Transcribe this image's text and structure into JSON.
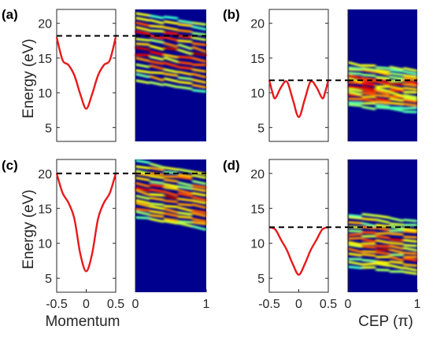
{
  "chart_data": [
    {
      "panel": "(a)",
      "type": "line",
      "x": [
        -0.5,
        -0.4,
        -0.3,
        -0.2,
        -0.1,
        0,
        0.1,
        0.2,
        0.3,
        0.4,
        0.5
      ],
      "y": [
        18,
        14.7,
        14,
        12.5,
        9.8,
        7.7,
        9.8,
        12.5,
        14,
        14.7,
        18
      ],
      "xlim": [
        -0.5,
        0.5
      ],
      "ylim": [
        3,
        22
      ],
      "yticks": [
        "5",
        "10",
        "15",
        "20"
      ],
      "reference_line_y": 18.2,
      "series_color": "#e8191a"
    },
    {
      "panel": "(b)",
      "type": "line",
      "x": [
        -0.5,
        -0.45,
        -0.4,
        -0.3,
        -0.2,
        -0.1,
        0,
        0.1,
        0.2,
        0.3,
        0.4,
        0.45,
        0.5
      ],
      "y": [
        11.8,
        10.2,
        9.2,
        10.8,
        11.6,
        9.0,
        6.5,
        9.0,
        11.6,
        10.8,
        9.2,
        10.2,
        11.8
      ],
      "xlim": [
        -0.5,
        0.5
      ],
      "ylim": [
        3,
        22
      ],
      "yticks": [
        "5",
        "10",
        "15",
        "20"
      ],
      "reference_line_y": 11.8,
      "series_color": "#e8191a"
    },
    {
      "panel": "(c)",
      "type": "line",
      "x": [
        -0.5,
        -0.4,
        -0.3,
        -0.2,
        -0.1,
        0,
        0.1,
        0.2,
        0.3,
        0.4,
        0.5
      ],
      "y": [
        20,
        17.2,
        15.8,
        13.5,
        8.5,
        6.0,
        8.5,
        13.5,
        15.8,
        17.2,
        20
      ],
      "xlim": [
        -0.5,
        0.5
      ],
      "ylim": [
        3,
        22
      ],
      "xticks": [
        "-0.5",
        "0",
        "0.5"
      ],
      "yticks": [
        "5",
        "10",
        "15",
        "20"
      ],
      "xlabel": "Momentum",
      "reference_line_y": 20,
      "series_color": "#e8191a"
    },
    {
      "panel": "(d)",
      "type": "line",
      "x": [
        -0.5,
        -0.4,
        -0.3,
        -0.2,
        -0.1,
        0,
        0.1,
        0.2,
        0.3,
        0.4,
        0.5
      ],
      "y": [
        12.3,
        12.0,
        10.5,
        9.0,
        7.0,
        5.5,
        7.0,
        9.0,
        10.5,
        12.0,
        12.3
      ],
      "xlim": [
        -0.5,
        0.5
      ],
      "ylim": [
        3,
        22
      ],
      "xticks": [
        "-0.5",
        "0",
        "0.5"
      ],
      "yticks": [
        "5",
        "10",
        "15",
        "20"
      ],
      "xlabel": "CEP (π)",
      "reference_line_y": 12.3,
      "series_color": "#e8191a"
    },
    {
      "panel": "(a) spectrum",
      "type": "heatmap",
      "xlim": [
        0,
        1
      ],
      "ylim": [
        3,
        22
      ],
      "colormap": "jet",
      "background_color": "#00008f",
      "signal_band_y": [
        11.5,
        22
      ]
    },
    {
      "panel": "(b) spectrum",
      "type": "heatmap",
      "xlim": [
        0,
        1
      ],
      "ylim": [
        3,
        22
      ],
      "colormap": "jet",
      "background_color": "#00008f",
      "signal_band_y": [
        8,
        14.5
      ]
    },
    {
      "panel": "(c) spectrum",
      "type": "heatmap",
      "xlim": [
        0,
        1
      ],
      "ylim": [
        3,
        22
      ],
      "xticks": [
        "0",
        "1"
      ],
      "colormap": "jet",
      "background_color": "#00008f",
      "signal_band_y": [
        13.5,
        22
      ]
    },
    {
      "panel": "(d) spectrum",
      "type": "heatmap",
      "xlim": [
        0,
        1
      ],
      "ylim": [
        3,
        22
      ],
      "xticks": [
        "0",
        "1"
      ],
      "colormap": "jet",
      "background_color": "#00008f",
      "signal_band_y": [
        6.5,
        14.5
      ]
    }
  ],
  "shared": {
    "ylabel": "Energy (eV)"
  }
}
